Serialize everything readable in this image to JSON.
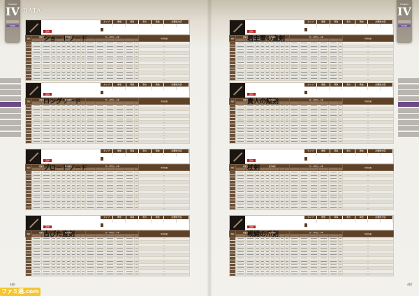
{
  "chapter": {
    "label": "Chapter",
    "numeral": "IV",
    "section": "DATA"
  },
  "pages": {
    "left": "486",
    "right": "487"
  },
  "watermark": "ファミ通.com",
  "spec_labels": [
    "タイプ",
    "重量",
    "特殊",
    "耐久",
    "戦技"
  ],
  "spec_label_required": "必要能力値",
  "table_headers": {
    "level": "強化",
    "attack": "攻撃力",
    "scaling": "能力補正",
    "guard": "ガード時カット率",
    "effect": "付帯効果"
  },
  "category": "直剣",
  "weapons_left": [
    {
      "name": "ショートソード"
    },
    {
      "name": "ロングソード"
    },
    {
      "name": "ブロードソード"
    },
    {
      "name": "古びた直剣"
    }
  ],
  "weapons_right": [
    {
      "name": "君主軍の直剣"
    },
    {
      "name": "貴人の細剣"
    },
    {
      "name": "杖剣"
    },
    {
      "name": "戦闘の爪剣"
    }
  ],
  "effect_placeholder": "—",
  "colors": {
    "header_brown": "#5e4228",
    "category_red": "#b3201e",
    "tab_selected": "#6e4b86"
  }
}
